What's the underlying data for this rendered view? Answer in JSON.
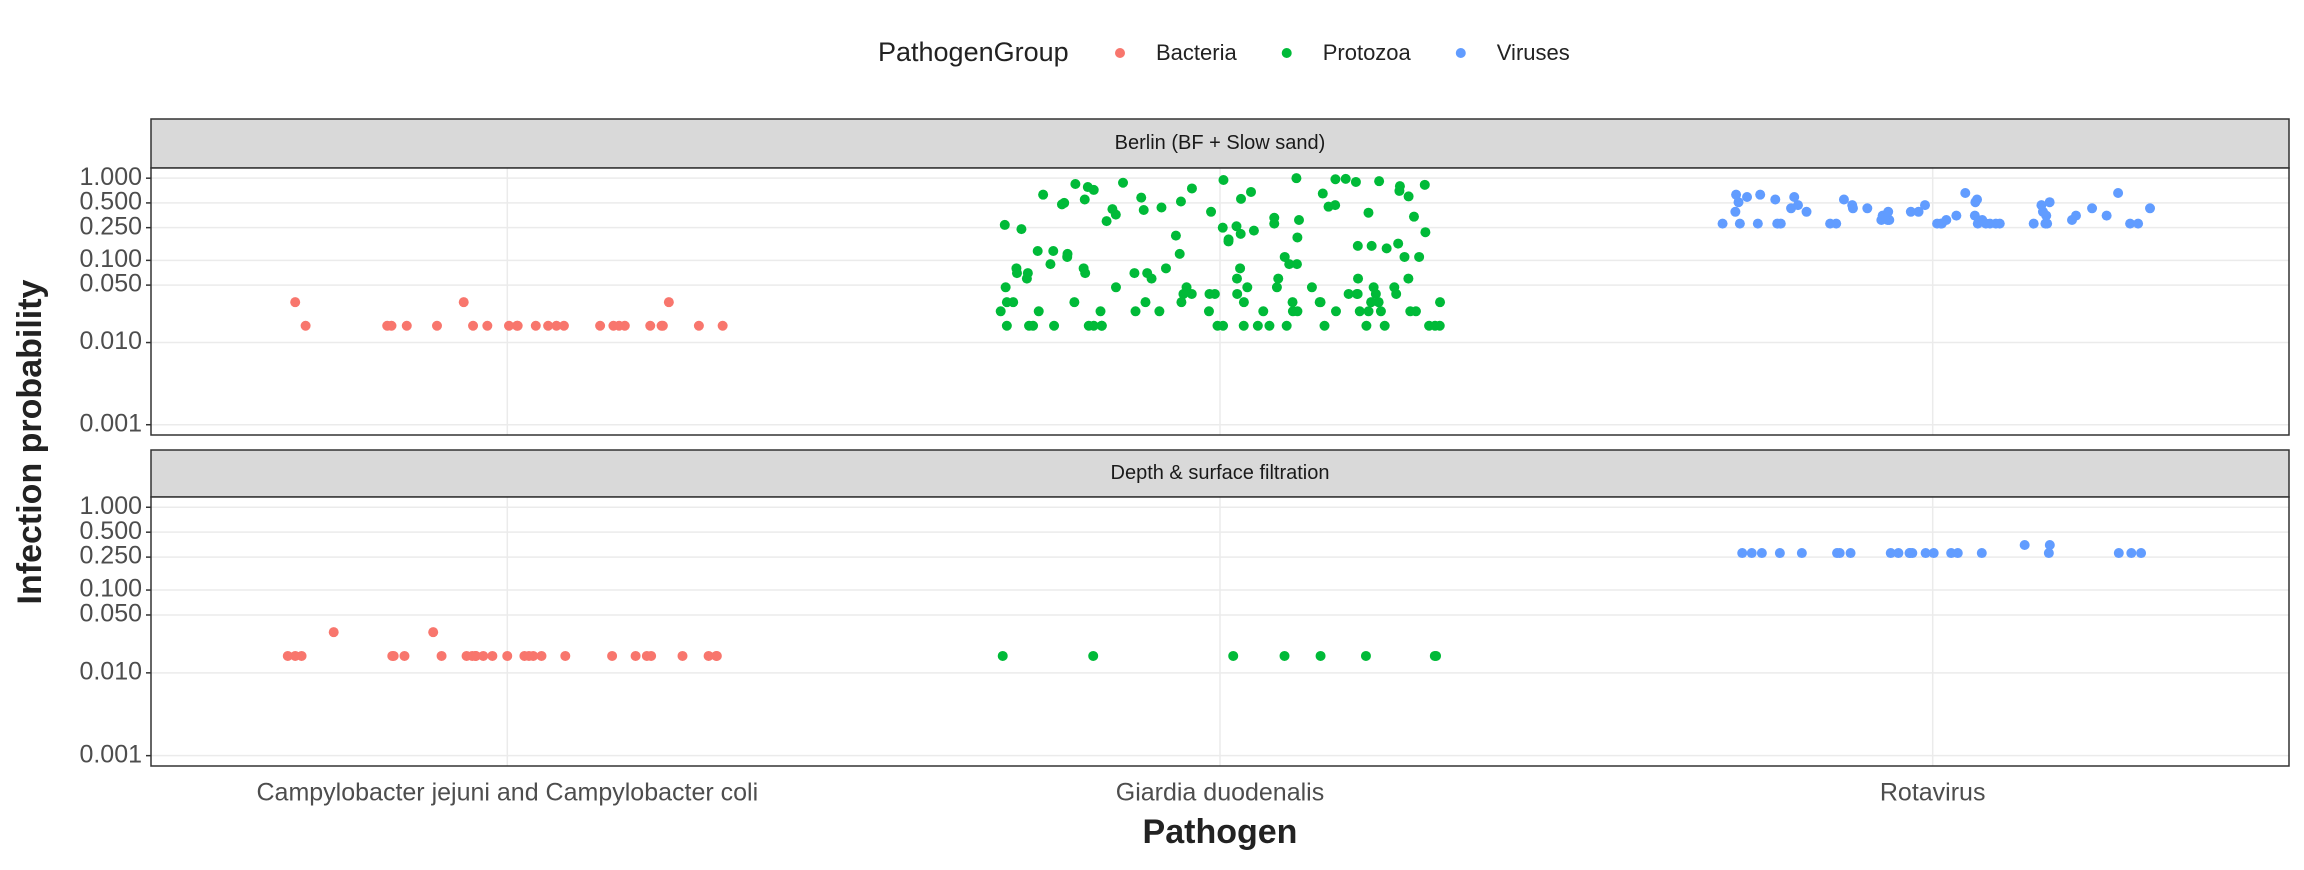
{
  "chart_data": {
    "type": "scatter",
    "legend_title": "PathogenGroup",
    "x_label": "Pathogen",
    "y_label": "Infection probability",
    "categories": [
      "Campylobacter jejuni and Campylobacter coli",
      "Giardia duodenalis",
      "Rotavirus"
    ],
    "log_y": true,
    "grid": true,
    "ylim": [
      0.00075,
      1.33
    ],
    "yticks": [
      {
        "value": 0.001,
        "label": "0.001"
      },
      {
        "value": 0.01,
        "label": "0.010"
      },
      {
        "value": 0.05,
        "label": "0.050"
      },
      {
        "value": 0.1,
        "label": "0.100"
      },
      {
        "value": 0.25,
        "label": "0.250"
      },
      {
        "value": 0.5,
        "label": "0.500"
      },
      {
        "value": 1,
        "label": "1.000"
      }
    ],
    "facets": [
      "Berlin (BF + Slow sand)",
      "Depth & surface filtration"
    ],
    "series": [
      {
        "name": "Bacteria",
        "color": "#f8766d",
        "values": [
          [
            0.016,
            0.016,
            0.016,
            0.016,
            0.016,
            0.016,
            0.016,
            0.016,
            0.016,
            0.031,
            0.016,
            0.016,
            0.031,
            0.016,
            0.016,
            0.016,
            0.016,
            0.016,
            0.016,
            0.031,
            0.016,
            0.016,
            0.016,
            0.016,
            0.016,
            0.016
          ],
          [
            0.016,
            0.016,
            0.016,
            0.031,
            0.016,
            0.016,
            0.016,
            0.016,
            0.016,
            0.016,
            0.016,
            0.016,
            0.016,
            0.016,
            0.016,
            0.016,
            0.016,
            0.031,
            0.016,
            0.016,
            0.016,
            0.016,
            0.016,
            0.016,
            0.016,
            0.016,
            0.016,
            0.016,
            0.016,
            0.016
          ]
        ]
      },
      {
        "name": "Protozoa",
        "color": "#00ba38",
        "values": [
          [
            0.016,
            0.016,
            0.016,
            0.016,
            0.016,
            0.016,
            0.016,
            0.016,
            0.016,
            0.016,
            0.016,
            0.016,
            0.016,
            0.016,
            0.016,
            0.016,
            0.016,
            0.016,
            0.016,
            0.016,
            0.024,
            0.024,
            0.024,
            0.024,
            0.024,
            0.024,
            0.024,
            0.024,
            0.024,
            0.024,
            0.024,
            0.024,
            0.024,
            0.024,
            0.024,
            0.031,
            0.031,
            0.031,
            0.031,
            0.031,
            0.031,
            0.031,
            0.031,
            0.031,
            0.031,
            0.031,
            0.031,
            0.039,
            0.039,
            0.039,
            0.039,
            0.039,
            0.039,
            0.039,
            0.039,
            0.039,
            0.039,
            0.047,
            0.047,
            0.047,
            0.047,
            0.047,
            0.047,
            0.047,
            0.047,
            0.06,
            0.06,
            0.06,
            0.06,
            0.06,
            0.06,
            0.07,
            0.07,
            0.07,
            0.07,
            0.07,
            0.08,
            0.08,
            0.08,
            0.08,
            0.09,
            0.09,
            0.09,
            0.11,
            0.11,
            0.11,
            0.12,
            0.12,
            0.13,
            0.14,
            0.15,
            0.16,
            0.17,
            0.19,
            0.2,
            0.22,
            0.24,
            0.26,
            0.28,
            0.3,
            0.33,
            0.36,
            0.39,
            0.42,
            0.45,
            0.48,
            0.52,
            0.56,
            0.6,
            0.65,
            0.7,
            0.75,
            0.8,
            0.85,
            0.9,
            0.95,
            1.0,
            0.18,
            0.27,
            0.38,
            0.55,
            0.72,
            0.92,
            0.13,
            0.21,
            0.34,
            0.47,
            0.63,
            0.83,
            0.98,
            0.15,
            0.25,
            0.41,
            0.58,
            0.78,
            0.88,
            0.11,
            0.23,
            0.31,
            0.5,
            0.68,
            0.97,
            0.44
          ],
          [
            0.016,
            0.016,
            0.016,
            0.016,
            0.016,
            0.016,
            0.016,
            0.016
          ]
        ]
      },
      {
        "name": "Viruses",
        "color": "#619cff",
        "values": [
          [
            0.28,
            0.28,
            0.28,
            0.28,
            0.28,
            0.28,
            0.28,
            0.28,
            0.28,
            0.28,
            0.28,
            0.28,
            0.28,
            0.28,
            0.28,
            0.28,
            0.28,
            0.28,
            0.28,
            0.28,
            0.31,
            0.31,
            0.31,
            0.31,
            0.31,
            0.31,
            0.35,
            0.35,
            0.35,
            0.35,
            0.35,
            0.35,
            0.35,
            0.39,
            0.39,
            0.39,
            0.39,
            0.39,
            0.39,
            0.43,
            0.43,
            0.43,
            0.43,
            0.43,
            0.47,
            0.47,
            0.47,
            0.47,
            0.51,
            0.51,
            0.51,
            0.55,
            0.55,
            0.55,
            0.59,
            0.59,
            0.63,
            0.63,
            0.66,
            0.66
          ],
          [
            0.28,
            0.28,
            0.28,
            0.28,
            0.28,
            0.28,
            0.28,
            0.28,
            0.28,
            0.35,
            0.28,
            0.28,
            0.28,
            0.28,
            0.35,
            0.28,
            0.28,
            0.28,
            0.28,
            0.28,
            0.28,
            0.28,
            0.28,
            0.28
          ]
        ]
      }
    ]
  }
}
